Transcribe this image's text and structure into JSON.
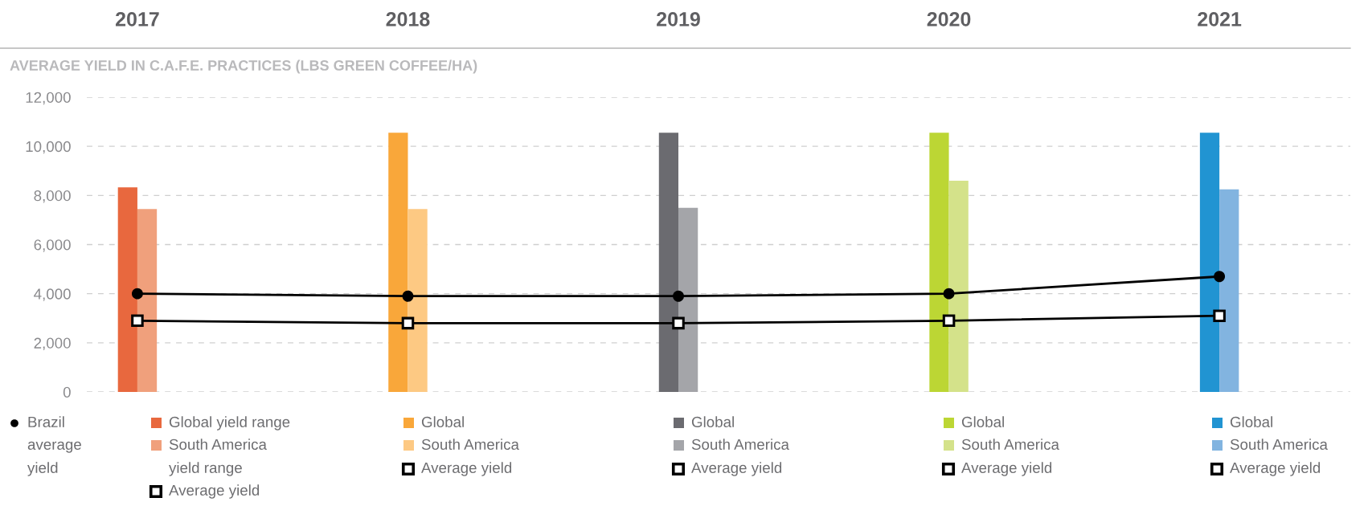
{
  "chart_data": {
    "type": "bar",
    "categories": [
      "2017",
      "2018",
      "2019",
      "2020",
      "2021"
    ],
    "ylabel": "AVERAGE YIELD IN C.A.F.E. PRACTICES (LBS GREEN COFFEE/HA)",
    "ylim": [
      0,
      12000
    ],
    "yticks": [
      {
        "value": 0,
        "label": "0"
      },
      {
        "value": 2000,
        "label": "2,000"
      },
      {
        "value": 4000,
        "label": "4,000"
      },
      {
        "value": 6000,
        "label": "6,000"
      },
      {
        "value": 8000,
        "label": "8,000"
      },
      {
        "value": 10000,
        "label": "10,000"
      },
      {
        "value": 12000,
        "label": "12,000"
      }
    ],
    "grid": "y",
    "legend": "bottom",
    "series": [
      {
        "name": "Global yield range",
        "colors": [
          "#e8683e",
          "#f9a73a",
          "#6b6b70",
          "#bcd634",
          "#2194d2"
        ],
        "values": [
          8330,
          10550,
          10550,
          10550,
          10550
        ]
      },
      {
        "name": "South America yield range",
        "colors": [
          "#f0a07c",
          "#fdc983",
          "#a4a5a9",
          "#d4e28a",
          "#82b4e0"
        ],
        "values": [
          7450,
          7450,
          7500,
          8600,
          8250
        ]
      },
      {
        "name": "Brazil average yield",
        "type": "line",
        "color": "#000000",
        "marker": "circle",
        "values": [
          4000,
          3900,
          3900,
          4000,
          4700
        ]
      },
      {
        "name": "Average yield",
        "type": "line",
        "color": "#000000",
        "marker": "square",
        "values": [
          2900,
          2800,
          2800,
          2900,
          3100
        ]
      }
    ],
    "annotations": [
      "Global",
      "South America",
      "Average yield",
      "Global",
      "South America",
      "Average yield",
      "Global",
      "South America",
      "Average yield",
      "Global",
      "South America",
      "Average yield"
    ]
  }
}
